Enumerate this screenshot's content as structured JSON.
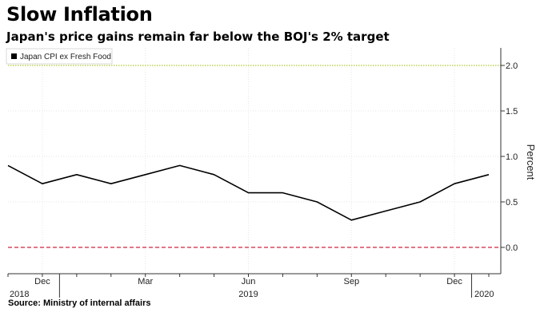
{
  "title": "Slow Inflation",
  "subtitle": "Japan's price gains remain far below the BOJ's 2% target",
  "source": "Source: Ministry of internal affairs",
  "chart_data": {
    "type": "line",
    "x": [
      "2018-11",
      "2018-12",
      "2019-01",
      "2019-02",
      "2019-03",
      "2019-04",
      "2019-05",
      "2019-06",
      "2019-07",
      "2019-08",
      "2019-09",
      "2019-10",
      "2019-11",
      "2019-12",
      "2020-01"
    ],
    "series": [
      {
        "name": "Japan CPI ex Fresh Food",
        "values": [
          0.9,
          0.7,
          0.8,
          0.7,
          0.8,
          0.9,
          0.8,
          0.6,
          0.6,
          0.5,
          0.3,
          0.4,
          0.5,
          0.7,
          0.8
        ],
        "color": "#000000"
      }
    ],
    "reference_lines": [
      {
        "value": 2.0,
        "color": "#b5c730",
        "style": "dotted"
      },
      {
        "value": 0.0,
        "color": "#d0243c",
        "style": "dashed"
      }
    ],
    "ylabel": "Percent",
    "yticks": [
      "0.0",
      "0.5",
      "1.0",
      "1.5",
      "2.0"
    ],
    "ylim": [
      -0.27,
      2.22
    ],
    "xticks": [
      "Dec",
      "Mar",
      "Jun",
      "Sep",
      "Dec"
    ],
    "year_labels": [
      "2018",
      "2019",
      "2020"
    ],
    "grid": true,
    "legend": "top-left",
    "y_axis_side": "right"
  }
}
